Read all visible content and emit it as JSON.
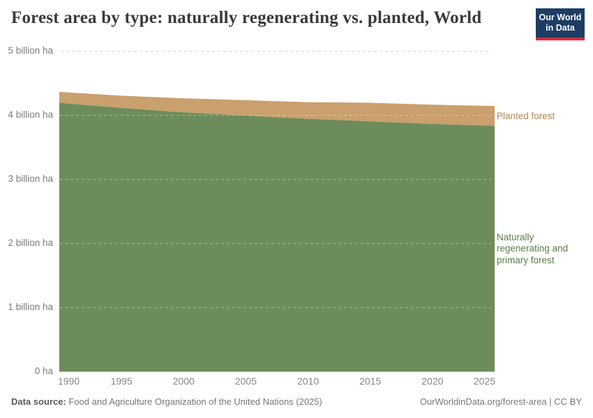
{
  "header": {
    "title": "Forest area by type: naturally regenerating vs. planted, World"
  },
  "logo": {
    "line1": "Our World",
    "line2": "in Data",
    "bg_color": "#1d3d63",
    "bar_color": "#dc2e41",
    "text_color": "#ffffff"
  },
  "chart_data": {
    "type": "area",
    "stacked": true,
    "title": "Forest area by type: naturally regenerating vs. planted, World",
    "unit": "billion ha",
    "x": [
      1990,
      1995,
      2000,
      2005,
      2010,
      2015,
      2020,
      2025
    ],
    "series": [
      {
        "id": "natural",
        "name": "Naturally regenerating and primary forest",
        "color": "#6d8c5b",
        "label_color": "#5b7c49",
        "values": [
          4.19,
          4.11,
          4.04,
          3.99,
          3.94,
          3.9,
          3.86,
          3.83
        ]
      },
      {
        "id": "planted",
        "name": "Planted forest",
        "color": "#c9a06e",
        "label_color": "#b1885a",
        "values": [
          0.17,
          0.19,
          0.22,
          0.24,
          0.26,
          0.29,
          0.3,
          0.31
        ]
      }
    ],
    "x_ticks": [
      1990,
      1995,
      2000,
      2005,
      2010,
      2015,
      2020,
      2025
    ],
    "y_ticks": [
      {
        "value": 0,
        "label": "0 ha"
      },
      {
        "value": 1,
        "label": "1 billion ha"
      },
      {
        "value": 2,
        "label": "2 billion ha"
      },
      {
        "value": 3,
        "label": "3 billion ha"
      },
      {
        "value": 4,
        "label": "4 billion ha"
      },
      {
        "value": 5,
        "label": "5 billion ha"
      }
    ],
    "xlim": [
      1990,
      2025
    ],
    "ylim": [
      0,
      5
    ],
    "grid": "dashed horizontal",
    "legend_position": "right-inline-labels",
    "gridline_color_outside_area": "#d7d7d7",
    "gridline_color_over_area": "rgba(255,255,255,0.4)",
    "axis_line_color": "#b9b9b9"
  },
  "footer": {
    "source_label": "Data source:",
    "source_text": "Food and Agriculture Organization of the United Nations (2025)",
    "credit": "OurWorldinData.org/forest-area | CC BY"
  }
}
